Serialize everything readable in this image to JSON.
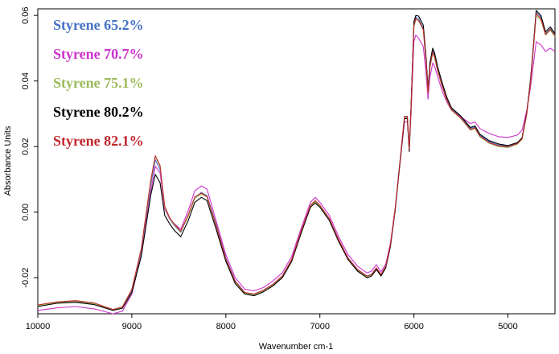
{
  "chart_data": {
    "type": "line",
    "xlabel": "Wavenumber cm-1",
    "ylabel": "Absorbance Units",
    "xlim": [
      10000,
      4500
    ],
    "ylim": [
      -0.031,
      0.062
    ],
    "x_reversed": true,
    "grid": false,
    "legend_placement": "top-left",
    "x_ticks": [
      10000,
      9000,
      8000,
      7000,
      6000,
      5000
    ],
    "y_ticks": [
      -0.02,
      0.0,
      0.02,
      0.04,
      0.06
    ],
    "x_tick_labels": [
      "10000",
      "9000",
      "8000",
      "7000",
      "6000",
      "5000"
    ],
    "y_tick_labels": [
      "-0.02",
      "0.00",
      "0.02",
      "0.04",
      "0.06"
    ],
    "x": [
      10000,
      9800,
      9600,
      9400,
      9200,
      9100,
      9000,
      8900,
      8800,
      8750,
      8700,
      8650,
      8600,
      8550,
      8480,
      8400,
      8330,
      8260,
      8200,
      8100,
      8000,
      7900,
      7800,
      7700,
      7600,
      7500,
      7400,
      7300,
      7200,
      7100,
      7050,
      7000,
      6900,
      6800,
      6700,
      6600,
      6500,
      6450,
      6400,
      6350,
      6300,
      6250,
      6200,
      6150,
      6100,
      6070,
      6050,
      6030,
      6000,
      5980,
      5950,
      5900,
      5870,
      5850,
      5830,
      5800,
      5780,
      5750,
      5700,
      5650,
      5600,
      5500,
      5400,
      5350,
      5300,
      5200,
      5100,
      5000,
      4900,
      4850,
      4800,
      4760,
      4730,
      4700,
      4650,
      4600,
      4550,
      4500
    ],
    "series": [
      {
        "name": "Styrene 65.2%",
        "color": "#4472c4",
        "values": [
          -0.0285,
          -0.0275,
          -0.0272,
          -0.0278,
          -0.0298,
          -0.029,
          -0.024,
          -0.012,
          0.008,
          0.016,
          0.013,
          0.001,
          -0.002,
          -0.004,
          -0.0062,
          -0.001,
          0.0045,
          0.006,
          0.005,
          -0.004,
          -0.014,
          -0.021,
          -0.0245,
          -0.025,
          -0.0238,
          -0.022,
          -0.0195,
          -0.0145,
          -0.006,
          0.002,
          0.0035,
          0.002,
          -0.002,
          -0.0085,
          -0.014,
          -0.0175,
          -0.0195,
          -0.019,
          -0.017,
          -0.019,
          -0.0165,
          -0.01,
          0.001,
          0.015,
          0.029,
          0.029,
          0.019,
          0.032,
          0.057,
          0.0595,
          0.059,
          0.056,
          0.046,
          0.037,
          0.045,
          0.0495,
          0.048,
          0.044,
          0.039,
          0.0345,
          0.0315,
          0.029,
          0.0255,
          0.026,
          0.0235,
          0.0215,
          0.0205,
          0.02,
          0.021,
          0.0225,
          0.03,
          0.04,
          0.05,
          0.061,
          0.0595,
          0.0545,
          0.056,
          0.054
        ]
      },
      {
        "name": "Styrene 70.7%",
        "color": "#cc33cc",
        "values": [
          -0.03,
          -0.0292,
          -0.0288,
          -0.0295,
          -0.031,
          -0.0302,
          -0.025,
          -0.013,
          0.006,
          0.014,
          0.012,
          0.001,
          -0.002,
          -0.0035,
          -0.0052,
          0.0005,
          0.0065,
          0.008,
          0.007,
          -0.003,
          -0.013,
          -0.02,
          -0.0235,
          -0.024,
          -0.023,
          -0.021,
          -0.0185,
          -0.0135,
          -0.005,
          0.003,
          0.0045,
          0.003,
          -0.001,
          -0.0075,
          -0.013,
          -0.0165,
          -0.0185,
          -0.018,
          -0.016,
          -0.0182,
          -0.0158,
          -0.0095,
          0.0012,
          0.0145,
          0.0275,
          0.0275,
          0.0195,
          0.03,
          0.052,
          0.054,
          0.053,
          0.0505,
          0.042,
          0.0345,
          0.041,
          0.0455,
          0.0445,
          0.0415,
          0.037,
          0.0335,
          0.031,
          0.029,
          0.027,
          0.0275,
          0.0255,
          0.024,
          0.023,
          0.0228,
          0.0235,
          0.025,
          0.031,
          0.038,
          0.045,
          0.052,
          0.051,
          0.049,
          0.05,
          0.049
        ]
      },
      {
        "name": "Styrene 75.1%",
        "color": "#9bbb59",
        "values": [
          -0.0285,
          -0.0276,
          -0.0272,
          -0.0279,
          -0.0299,
          -0.029,
          -0.0238,
          -0.0115,
          0.009,
          0.017,
          0.014,
          0.0015,
          -0.0018,
          -0.0038,
          -0.006,
          -0.0012,
          0.0042,
          0.0055,
          0.0046,
          -0.0045,
          -0.0145,
          -0.0213,
          -0.0247,
          -0.0252,
          -0.024,
          -0.0222,
          -0.0197,
          -0.0147,
          -0.0062,
          0.0018,
          0.0032,
          0.0018,
          -0.0022,
          -0.0087,
          -0.0142,
          -0.0177,
          -0.0197,
          -0.0192,
          -0.0172,
          -0.0192,
          -0.0167,
          -0.0102,
          0.0008,
          0.0148,
          0.0288,
          0.0288,
          0.019,
          0.0318,
          0.0565,
          0.0588,
          0.0583,
          0.0555,
          0.0455,
          0.0362,
          0.044,
          0.0485,
          0.047,
          0.0432,
          0.0383,
          0.034,
          0.031,
          0.0285,
          0.025,
          0.0255,
          0.023,
          0.021,
          0.02,
          0.0197,
          0.0207,
          0.0222,
          0.0298,
          0.0395,
          0.0495,
          0.06,
          0.0585,
          0.054,
          0.0555,
          0.0535
        ]
      },
      {
        "name": "Styrene 80.2%",
        "color": "#000000",
        "values": [
          -0.0288,
          -0.0278,
          -0.0275,
          -0.0282,
          -0.03,
          -0.0293,
          -0.0245,
          -0.0135,
          0.005,
          0.0115,
          0.009,
          -0.001,
          -0.0035,
          -0.0055,
          -0.0075,
          -0.0025,
          0.003,
          0.0045,
          0.0035,
          -0.0055,
          -0.015,
          -0.0218,
          -0.025,
          -0.0255,
          -0.0243,
          -0.0225,
          -0.02,
          -0.015,
          -0.0065,
          0.0015,
          0.0028,
          0.0015,
          -0.0025,
          -0.009,
          -0.0145,
          -0.018,
          -0.02,
          -0.0195,
          -0.0175,
          -0.0195,
          -0.017,
          -0.0105,
          0.0005,
          0.0145,
          0.0285,
          0.0285,
          0.0185,
          0.0325,
          0.058,
          0.06,
          0.0598,
          0.057,
          0.047,
          0.0375,
          0.0455,
          0.05,
          0.0485,
          0.0445,
          0.0395,
          0.035,
          0.0318,
          0.0293,
          0.0258,
          0.0263,
          0.0238,
          0.0218,
          0.0208,
          0.0203,
          0.0212,
          0.0227,
          0.0303,
          0.0405,
          0.0505,
          0.0615,
          0.06,
          0.055,
          0.0565,
          0.0545
        ]
      },
      {
        "name": "Styrene 82.1%",
        "color": "#c0282d",
        "values": [
          -0.0283,
          -0.0274,
          -0.027,
          -0.0277,
          -0.0297,
          -0.0289,
          -0.0236,
          -0.0112,
          0.0095,
          0.0172,
          0.0142,
          0.0018,
          -0.0016,
          -0.0036,
          -0.0058,
          -0.0008,
          0.0046,
          0.0058,
          0.0048,
          -0.0043,
          -0.0143,
          -0.0211,
          -0.0245,
          -0.025,
          -0.0238,
          -0.022,
          -0.0195,
          -0.0144,
          -0.0058,
          0.0021,
          0.0035,
          0.0021,
          -0.0019,
          -0.0084,
          -0.014,
          -0.0175,
          -0.0195,
          -0.019,
          -0.017,
          -0.019,
          -0.0165,
          -0.01,
          0.001,
          0.015,
          0.0292,
          0.0292,
          0.0192,
          0.032,
          0.0568,
          0.059,
          0.0585,
          0.0557,
          0.0457,
          0.0365,
          0.0443,
          0.0488,
          0.0473,
          0.0435,
          0.0385,
          0.0342,
          0.0312,
          0.0287,
          0.0252,
          0.0257,
          0.0232,
          0.0212,
          0.0202,
          0.0199,
          0.0209,
          0.0224,
          0.03,
          0.0398,
          0.0498,
          0.0605,
          0.059,
          0.0542,
          0.0558,
          0.0538
        ]
      }
    ]
  }
}
